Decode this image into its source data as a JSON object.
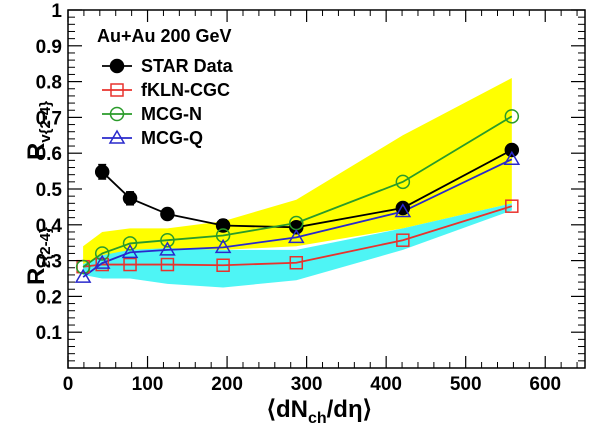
{
  "chart_data": {
    "type": "line",
    "title": "",
    "xlabel": "⟨dN_ch/dη⟩",
    "ylabel": "R_v(2-4), R_ε(2-4)",
    "xlim": [
      0,
      650
    ],
    "ylim": [
      0,
      1
    ],
    "x_ticks": [
      "0",
      "100",
      "200",
      "300",
      "400",
      "500",
      "600"
    ],
    "y_ticks": [
      "0.1",
      "0.2",
      "0.3",
      "0.4",
      "0.5",
      "0.6",
      "0.7",
      "0.8",
      "0.9",
      "1"
    ],
    "ylabel_parts": {
      "top": {
        "base": "R",
        "sub": "v{2-4}"
      },
      "bottom": {
        "base": "R",
        "sub": "ε{2-4}"
      }
    },
    "xlabel_parts": {
      "pre": "⟨dN",
      "sub": "ch",
      "post": "/dη⟩"
    },
    "legend_title": "Au+Au 200 GeV",
    "legend_position": "top-left",
    "series": [
      {
        "name": "STAR Data",
        "color": "#000000",
        "marker": "filled-circle",
        "x": [
          43,
          78,
          125,
          195,
          287,
          421,
          558
        ],
        "y": [
          0.548,
          0.474,
          0.43,
          0.398,
          0.393,
          0.447,
          0.609
        ],
        "yerr": [
          0.02,
          0.018,
          0.015,
          0.016,
          0.015,
          0.013,
          0.012
        ]
      },
      {
        "name": "fKLN-CGC",
        "color": "#e8322d",
        "marker": "open-square",
        "x": [
          19,
          43,
          78,
          125,
          195,
          287,
          421,
          558
        ],
        "y": [
          0.283,
          0.289,
          0.289,
          0.289,
          0.287,
          0.294,
          0.357,
          0.452
        ]
      },
      {
        "name": "MCG-N",
        "color": "#2a9b2a",
        "marker": "open-circle",
        "x": [
          19,
          43,
          78,
          125,
          195,
          287,
          421,
          558
        ],
        "y": [
          0.282,
          0.32,
          0.348,
          0.357,
          0.37,
          0.405,
          0.52,
          0.703
        ]
      },
      {
        "name": "MCG-Q",
        "color": "#2929cc",
        "marker": "open-triangle",
        "x": [
          19,
          43,
          78,
          125,
          195,
          287,
          421,
          558
        ],
        "y": [
          0.254,
          0.293,
          0.323,
          0.33,
          0.337,
          0.365,
          0.437,
          0.583
        ]
      }
    ],
    "bands": [
      {
        "color": "#ffff00",
        "upper": {
          "x": [
            19,
            43,
            78,
            125,
            195,
            287,
            421,
            558
          ],
          "y": [
            0.34,
            0.38,
            0.39,
            0.39,
            0.41,
            0.47,
            0.65,
            0.81
          ]
        },
        "lower": {
          "x": [
            19,
            43,
            78,
            125,
            195,
            287,
            421,
            558
          ],
          "y": [
            0.28,
            0.3,
            0.33,
            0.33,
            0.33,
            0.34,
            0.39,
            0.46
          ]
        }
      },
      {
        "color": "#4ef5f5",
        "upper": {
          "x": [
            19,
            43,
            78,
            125,
            195,
            287,
            421,
            558
          ],
          "y": [
            0.29,
            0.315,
            0.33,
            0.335,
            0.33,
            0.33,
            0.39,
            0.46
          ]
        },
        "lower": {
          "x": [
            19,
            43,
            78,
            125,
            195,
            287,
            421,
            558
          ],
          "y": [
            0.26,
            0.25,
            0.25,
            0.235,
            0.225,
            0.245,
            0.33,
            0.44
          ]
        }
      }
    ]
  }
}
